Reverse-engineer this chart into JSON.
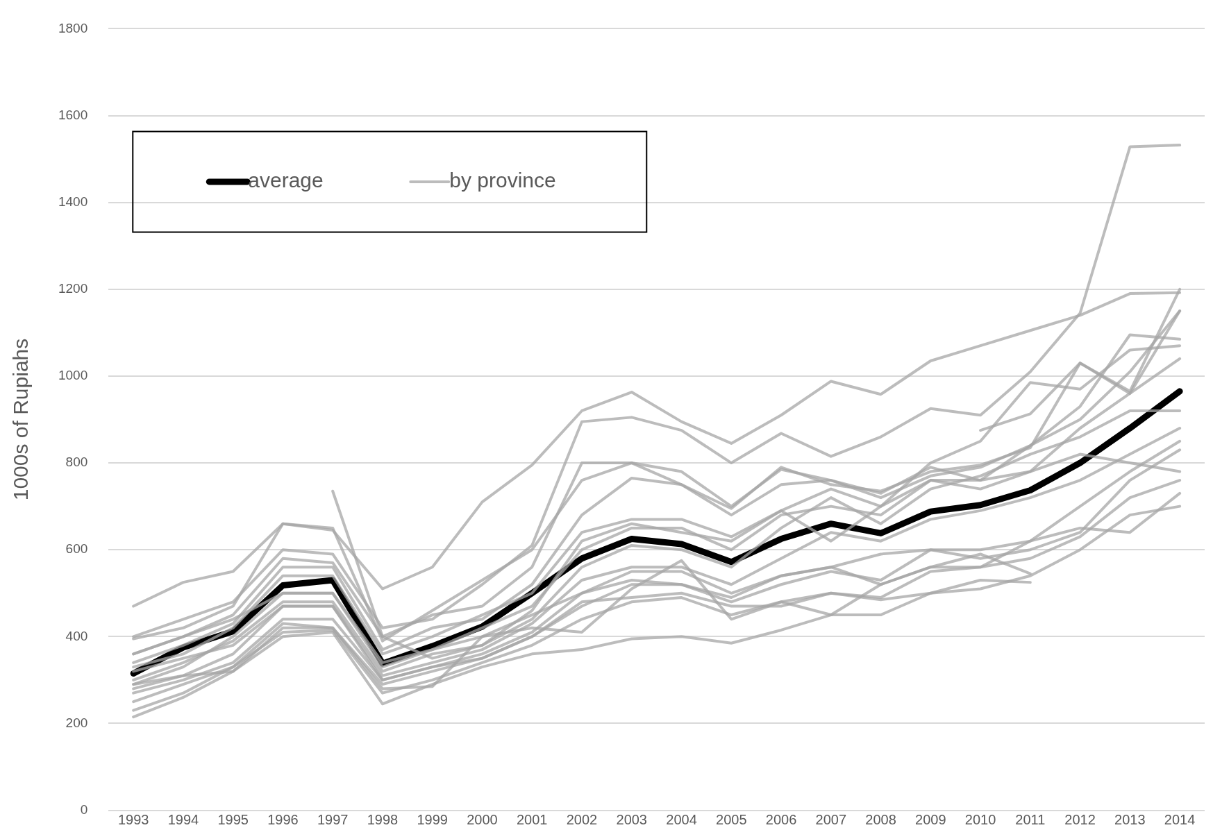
{
  "chart_data": {
    "type": "line",
    "ylabel": "1000s of Rupiahs",
    "categories": [
      "1993",
      "1994",
      "1995",
      "1996",
      "1997",
      "1998",
      "1999",
      "2000",
      "2001",
      "2002",
      "2003",
      "2004",
      "2005",
      "2006",
      "2007",
      "2008",
      "2009",
      "2010",
      "2011",
      "2012",
      "2013",
      "2014"
    ],
    "ylim": [
      0,
      1800
    ],
    "yticks": [
      0,
      200,
      400,
      600,
      800,
      1000,
      1200,
      1400,
      1600,
      1800
    ],
    "grid": "y",
    "legend": "top left",
    "marker": "none",
    "line_style": "solid",
    "series": [
      {
        "name": "by province",
        "color": "#a6a6a6",
        "values": [
          470,
          525,
          550,
          660,
          645,
          510,
          560,
          710,
          795,
          920,
          963,
          895,
          845,
          910,
          988,
          958,
          1035,
          1070,
          1105,
          1140,
          1190,
          1192
        ]
      },
      {
        "color": "#a6a6a6",
        "values": [
          400,
          440,
          480,
          600,
          590,
          420,
          440,
          520,
          610,
          895,
          905,
          875,
          800,
          868,
          815,
          860,
          925,
          910,
          1010,
          1145,
          1528,
          1532
        ]
      },
      {
        "color": "#a6a6a6",
        "values": [
          395,
          420,
          470,
          660,
          650,
          390,
          460,
          530,
          600,
          760,
          800,
          780,
          700,
          785,
          760,
          730,
          790,
          760,
          840,
          930,
          1095,
          1085
        ]
      },
      {
        "color": "#a6a6a6",
        "values": [
          360,
          400,
          450,
          580,
          570,
          400,
          450,
          470,
          560,
          800,
          800,
          750,
          695,
          790,
          750,
          735,
          780,
          795,
          835,
          1030,
          965,
          1200
        ]
      },
      {
        "color": "#a6a6a6",
        "values": [
          340,
          380,
          430,
          560,
          560,
          370,
          420,
          440,
          520,
          680,
          765,
          750,
          680,
          750,
          760,
          720,
          770,
          790,
          840,
          900,
          1010,
          1150
        ]
      },
      {
        "color": "#a6a6a6",
        "values": [
          330,
          360,
          420,
          540,
          540,
          360,
          400,
          450,
          500,
          640,
          670,
          670,
          630,
          690,
          740,
          700,
          800,
          850,
          985,
          970,
          1060,
          1070
        ]
      },
      {
        "color": "#a6a6a6",
        "values": [
          290,
          330,
          400,
          500,
          500,
          330,
          370,
          420,
          470,
          600,
          650,
          650,
          600,
          680,
          700,
          680,
          760,
          740,
          780,
          880,
          960,
          1040
        ]
      },
      {
        "color": "#a6a6a6",
        "values": [
          300,
          340,
          390,
          480,
          480,
          320,
          360,
          380,
          440,
          560,
          610,
          600,
          560,
          650,
          720,
          660,
          740,
          770,
          820,
          860,
          920,
          920
        ]
      },
      {
        "color": "#a6a6a6",
        "values": [
          280,
          310,
          360,
          470,
          470,
          310,
          340,
          370,
          430,
          530,
          560,
          560,
          520,
          580,
          640,
          620,
          670,
          690,
          720,
          760,
          820,
          880
        ]
      },
      {
        "color": "#a6a6a6",
        "values": [
          270,
          300,
          340,
          440,
          440,
          300,
          330,
          360,
          410,
          500,
          550,
          550,
          500,
          540,
          560,
          590,
          600,
          600,
          620,
          700,
          780,
          850
        ]
      },
      {
        "color": "#a6a6a6",
        "values": [
          250,
          290,
          330,
          430,
          420,
          290,
          320,
          350,
          400,
          470,
          520,
          520,
          480,
          520,
          550,
          530,
          600,
          580,
          600,
          640,
          760,
          830
        ]
      },
      {
        "color": "#a6a6a6",
        "values": [
          230,
          270,
          330,
          410,
          415,
          270,
          300,
          340,
          380,
          440,
          480,
          490,
          450,
          480,
          500,
          490,
          550,
          560,
          580,
          630,
          720,
          760
        ]
      },
      {
        "color": "#a6a6a6",
        "values": [
          215,
          260,
          320,
          400,
          410,
          245,
          290,
          330,
          360,
          370,
          395,
          400,
          385,
          415,
          450,
          450,
          500,
          510,
          540,
          600,
          680,
          700
        ]
      },
      {
        "color": "#a6a6a6",
        "values": [
          290,
          310,
          320,
          420,
          420,
          280,
          285,
          400,
          420,
          410,
          510,
          575,
          440,
          480,
          450,
          520,
          560,
          560,
          620,
          650,
          640,
          730
        ]
      },
      {
        "color": "#a6a6a6",
        "values": [
          null,
          null,
          null,
          null,
          735,
          400,
          350,
          380,
          460,
          620,
          660,
          640,
          620,
          690,
          620,
          700,
          760,
          760,
          780,
          820,
          800,
          780
        ]
      },
      {
        "color": "#a6a6a6",
        "values": [
          360,
          400,
          440,
          500,
          500,
          340,
          370,
          400,
          450,
          500,
          530,
          520,
          490,
          540,
          560,
          520,
          560,
          590,
          545,
          null,
          null,
          null
        ]
      },
      {
        "color": "#a6a6a6",
        "values": [
          320,
          350,
          380,
          470,
          470,
          300,
          330,
          350,
          400,
          480,
          490,
          500,
          470,
          470,
          500,
          485,
          500,
          530,
          525,
          null,
          null,
          null
        ]
      },
      {
        "color": "#a6a6a6",
        "values": [
          null,
          null,
          null,
          null,
          null,
          null,
          null,
          null,
          null,
          null,
          null,
          null,
          null,
          null,
          null,
          null,
          null,
          875,
          913,
          1030,
          960,
          1150
        ]
      },
      {
        "name": "average",
        "color": "#000000",
        "values": [
          315,
          375,
          412,
          518,
          530,
          338,
          378,
          423,
          500,
          580,
          625,
          613,
          572,
          625,
          660,
          638,
          688,
          703,
          737,
          800,
          880,
          965
        ]
      }
    ]
  }
}
